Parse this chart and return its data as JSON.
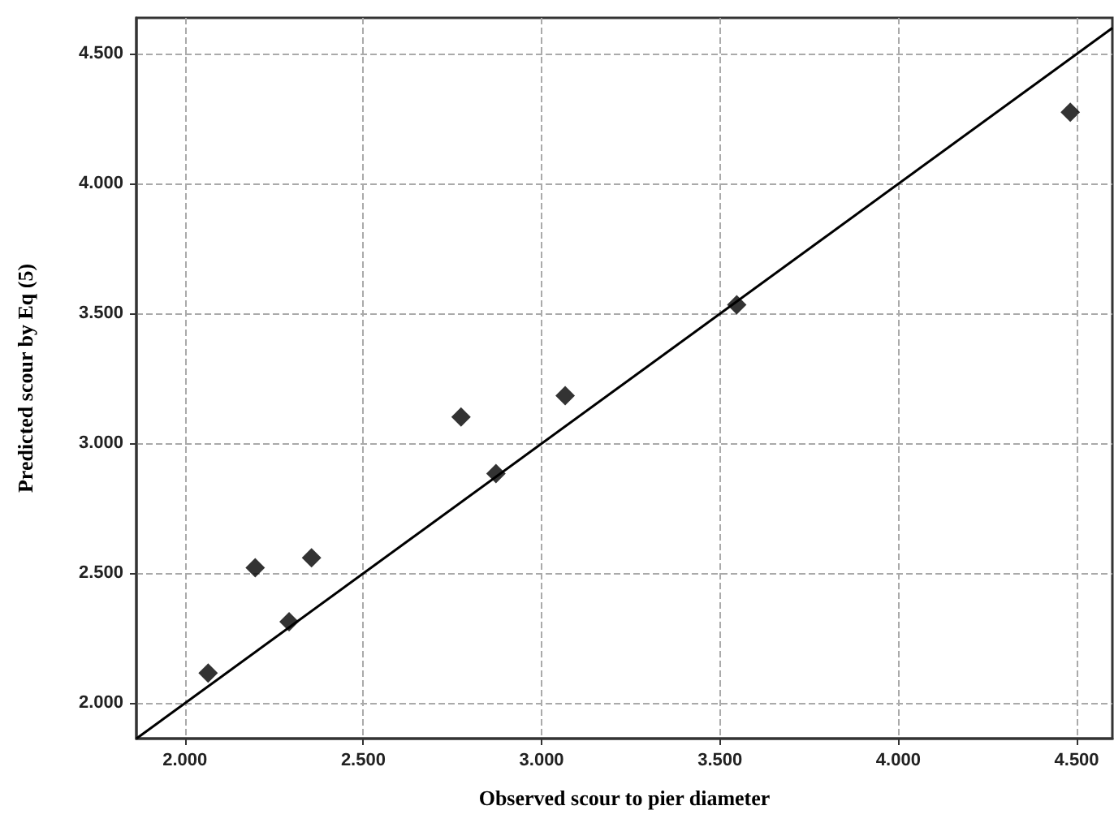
{
  "chart_data": {
    "type": "scatter",
    "xlabel": "Observed scour to pier diameter",
    "ylabel": "Predicted scour by Eq (5)",
    "x": [
      2.065,
      2.197,
      2.292,
      2.355,
      2.774,
      2.872,
      3.066,
      3.547,
      4.482
    ],
    "series": [
      {
        "color": "#000000",
        "marker": "diamond",
        "values": [
          2.116,
          2.522,
          2.314,
          2.56,
          3.102,
          2.884,
          3.184,
          3.534,
          4.276
        ]
      },
      {
        "type": "line",
        "color": "#000000",
        "marker": "none",
        "x": [
          1.864,
          4.6
        ],
        "values": [
          1.864,
          4.6
        ]
      }
    ],
    "xlim": [
      1.864,
      4.6
    ],
    "ylim": [
      1.864,
      4.639
    ],
    "xticks": [
      {
        "value": 2,
        "label": "2.000"
      },
      {
        "value": 2.5,
        "label": "2.500"
      },
      {
        "value": 3,
        "label": "3.000"
      },
      {
        "value": 3.5,
        "label": "3.500"
      },
      {
        "value": 4,
        "label": "4.000"
      },
      {
        "value": 4.5,
        "label": "4.500"
      }
    ],
    "yticks": [
      {
        "value": 2,
        "label": "2.000"
      },
      {
        "value": 2.5,
        "label": "2.500"
      },
      {
        "value": 3,
        "label": "3.000"
      },
      {
        "value": 3.5,
        "label": "3.500"
      },
      {
        "value": 4,
        "label": "4.000"
      },
      {
        "value": 4.5,
        "label": "4.500"
      }
    ],
    "grid": true
  }
}
